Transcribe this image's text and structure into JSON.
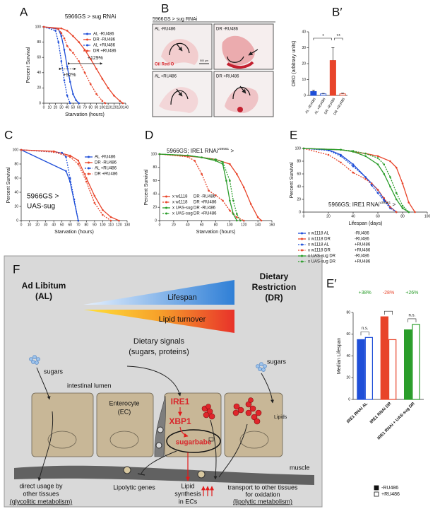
{
  "chart_data": [
    {
      "type": "line",
      "panel": "A",
      "title": "5966GS > sug RNAi",
      "xlabel": "Starvation (hours)",
      "ylabel": "Percent Survival",
      "xlim": [
        0,
        140
      ],
      "ylim": [
        0,
        100
      ],
      "xticks": [
        0,
        10,
        20,
        30,
        40,
        50,
        60,
        70,
        80,
        90,
        100,
        110,
        120,
        130,
        140
      ],
      "yticks": [
        0,
        20,
        40,
        60,
        80,
        100
      ],
      "legend": "upper right",
      "annotations": [
        "+129%",
        "+92%"
      ],
      "series": [
        {
          "name": "AL -RU486",
          "color": "#1f4fd8",
          "dash": false,
          "x": [
            0,
            25,
            30,
            35,
            40,
            45,
            50,
            55,
            60
          ],
          "values": [
            100,
            97,
            88,
            70,
            48,
            28,
            12,
            4,
            0
          ]
        },
        {
          "name": "DR -RU486",
          "color": "#e8442a",
          "dash": false,
          "x": [
            0,
            30,
            40,
            50,
            60,
            70,
            80,
            90,
            100,
            110,
            120,
            130,
            135
          ],
          "values": [
            100,
            98,
            95,
            88,
            80,
            70,
            58,
            45,
            32,
            20,
            10,
            3,
            0
          ]
        },
        {
          "name": "AL +RU486",
          "color": "#1f4fd8",
          "dash": true,
          "x": [
            0,
            20,
            25,
            30,
            35,
            40,
            45
          ],
          "values": [
            100,
            95,
            80,
            55,
            30,
            10,
            0
          ]
        },
        {
          "name": "DR +RU486",
          "color": "#e8442a",
          "dash": true,
          "x": [
            0,
            25,
            30,
            35,
            40,
            45,
            50,
            60,
            70,
            80,
            90,
            100,
            105
          ],
          "values": [
            100,
            97,
            92,
            85,
            75,
            70,
            66,
            55,
            40,
            25,
            12,
            3,
            0
          ]
        }
      ]
    },
    {
      "type": "bar",
      "panel": "B′",
      "ylabel": "ORO (arbitrary units)",
      "ylim": [
        0,
        40
      ],
      "yticks": [
        0,
        10,
        20,
        30,
        40
      ],
      "categories": [
        "AL -RU486",
        "AL +RU486",
        "DR -RU486",
        "DR +RU486"
      ],
      "values": [
        2.5,
        1,
        22,
        1
      ],
      "errors": [
        0.8,
        0.3,
        8,
        0.4
      ],
      "colors": [
        "#1f4fd8",
        "#1f4fd8",
        "#e8442a",
        "#e8442a"
      ],
      "filled": [
        true,
        false,
        true,
        false
      ],
      "annotations": [
        "*",
        "**"
      ]
    },
    {
      "type": "line",
      "panel": "C",
      "xlabel": "Starvation (hours)",
      "ylabel": "Percent Survival",
      "annotation": [
        "5966GS >",
        "UAS-sug"
      ],
      "xlim": [
        0,
        130
      ],
      "ylim": [
        0,
        100
      ],
      "xticks": [
        0,
        10,
        20,
        30,
        40,
        50,
        60,
        70,
        80,
        90,
        100,
        110,
        120,
        130
      ],
      "yticks": [
        0,
        20,
        40,
        60,
        80,
        100
      ],
      "legend": "upper right",
      "series": [
        {
          "name": "AL -RU486",
          "color": "#1f4fd8",
          "dash": false,
          "x": [
            0,
            55,
            60,
            70
          ],
          "values": [
            100,
            70,
            55,
            0
          ]
        },
        {
          "name": "DR -RU486",
          "color": "#e8442a",
          "dash": false,
          "x": [
            0,
            40,
            60,
            70,
            80,
            90,
            100,
            110,
            120
          ],
          "values": [
            100,
            98,
            92,
            85,
            60,
            35,
            15,
            5,
            0
          ]
        },
        {
          "name": "AL +RU486",
          "color": "#1f4fd8",
          "dash": true,
          "x": [
            0,
            50,
            55,
            60,
            65,
            70
          ],
          "values": [
            100,
            96,
            90,
            60,
            30,
            0
          ]
        },
        {
          "name": "DR +RU486",
          "color": "#e8442a",
          "dash": true,
          "x": [
            0,
            40,
            60,
            70,
            80,
            90,
            100,
            110
          ],
          "values": [
            100,
            97,
            90,
            80,
            55,
            25,
            8,
            0
          ]
        }
      ]
    },
    {
      "type": "line",
      "panel": "D",
      "xlabel": "Starvation (hours)",
      "ylabel": "Percent Survival",
      "annotation": [
        "5966GS; IRE1 RNAi",
        "v39561",
        " >"
      ],
      "xlim": [
        0,
        160
      ],
      "ylim": [
        0,
        100
      ],
      "xticks": [
        0,
        20,
        40,
        60,
        80,
        100,
        120,
        140,
        160
      ],
      "yticks": [
        0,
        20,
        40,
        60,
        80,
        100
      ],
      "legend": "lower left",
      "series": [
        {
          "name": "x w1118",
          "treatment": "DR -RU486",
          "color": "#e8442a",
          "dash": false,
          "x": [
            0,
            40,
            60,
            80,
            100,
            110,
            120,
            130,
            140,
            145
          ],
          "values": [
            100,
            97,
            95,
            92,
            85,
            70,
            50,
            25,
            5,
            0
          ]
        },
        {
          "name": "x w1118",
          "treatment": "DR +RU486",
          "color": "#e8442a",
          "dash": true,
          "x": [
            0,
            40,
            50,
            60,
            70,
            80,
            90,
            100,
            110,
            120
          ],
          "values": [
            100,
            96,
            90,
            70,
            45,
            38,
            30,
            15,
            5,
            0
          ]
        },
        {
          "name": "x UAS-sug",
          "treatment": "DR -RU486",
          "color": "#2a9d2a",
          "dash": false,
          "x": [
            0,
            40,
            60,
            80,
            90,
            95,
            100,
            105,
            110
          ],
          "values": [
            100,
            98,
            95,
            90,
            85,
            60,
            30,
            10,
            0
          ]
        },
        {
          "name": "x UAS-sug",
          "treatment": "DR +RU486",
          "color": "#2a9d2a",
          "dash": true,
          "x": [
            0,
            40,
            60,
            80,
            90,
            100,
            105,
            110,
            115
          ],
          "values": [
            100,
            98,
            95,
            92,
            88,
            60,
            30,
            10,
            0
          ]
        }
      ]
    },
    {
      "type": "line",
      "panel": "E",
      "xlabel": "Lifespan (days)",
      "ylabel": "Percent Survival",
      "annotation": [
        "5966GS; IRE1 RNAi",
        "v39561",
        " >"
      ],
      "xlim": [
        0,
        100
      ],
      "ylim": [
        0,
        100
      ],
      "xticks": [
        0,
        20,
        40,
        60,
        80,
        100
      ],
      "yticks": [
        0,
        20,
        40,
        60,
        80,
        100
      ],
      "legend": "below",
      "series": [
        {
          "name": "x w1118 AL",
          "treatment": "-RU486",
          "color": "#1f4fd8",
          "dash": false,
          "x": [
            0,
            20,
            30,
            40,
            50,
            55,
            60,
            65,
            70,
            75
          ],
          "values": [
            100,
            98,
            90,
            75,
            55,
            45,
            35,
            20,
            8,
            0
          ]
        },
        {
          "name": "x w1118 DR",
          "treatment": "-RU486",
          "color": "#e8442a",
          "dash": false,
          "x": [
            0,
            30,
            40,
            50,
            60,
            70,
            75,
            80,
            85,
            90
          ],
          "values": [
            100,
            98,
            95,
            92,
            88,
            80,
            70,
            45,
            15,
            0
          ]
        },
        {
          "name": "x w1118 AL",
          "treatment": "+RU486",
          "color": "#1f4fd8",
          "dash": true,
          "x": [
            0,
            20,
            30,
            40,
            50,
            55,
            60,
            65,
            70,
            75
          ],
          "values": [
            100,
            97,
            88,
            72,
            55,
            42,
            30,
            18,
            6,
            0
          ]
        },
        {
          "name": "x w1118 DR",
          "treatment": "+RU486",
          "color": "#e8442a",
          "dash": true,
          "x": [
            0,
            20,
            30,
            40,
            50,
            55,
            60,
            65,
            70,
            75
          ],
          "values": [
            100,
            90,
            78,
            62,
            52,
            45,
            35,
            22,
            8,
            0
          ]
        },
        {
          "name": "x UAS-sug DR",
          "treatment": "-RU486",
          "color": "#2a9d2a",
          "dash": false,
          "x": [
            0,
            30,
            40,
            50,
            60,
            65,
            70,
            75,
            80,
            85
          ],
          "values": [
            100,
            98,
            95,
            88,
            75,
            60,
            40,
            20,
            6,
            0
          ]
        },
        {
          "name": "x UAS-sug DR",
          "treatment": "+RU486",
          "color": "#2a9d2a",
          "dash": true,
          "x": [
            0,
            30,
            40,
            50,
            60,
            65,
            70,
            75,
            80,
            85
          ],
          "values": [
            100,
            98,
            96,
            92,
            85,
            75,
            55,
            30,
            10,
            0
          ]
        }
      ]
    },
    {
      "type": "grouped_bar",
      "panel": "E′",
      "ylabel": "Median Lifespan",
      "ylim": [
        0,
        80
      ],
      "yticks": [
        0,
        20,
        40,
        60,
        80
      ],
      "categories": [
        "IRE1 RNAi AL",
        "IRE1 RNAi DR",
        "IRE1 RNAi + UAS-sug DR"
      ],
      "colors": [
        "#1f4fd8",
        "#e8442a",
        "#2a9d2a"
      ],
      "series": [
        {
          "name": "-RU486",
          "filled": true,
          "values": [
            55,
            76,
            64
          ]
        },
        {
          "name": "+RU486",
          "filled": false,
          "values": [
            57,
            55,
            69
          ]
        }
      ],
      "changes": [
        {
          "text": "+38%",
          "color": "#2a9d2a"
        },
        {
          "text": "-28%",
          "color": "#e8442a"
        },
        {
          "text": "+26%",
          "color": "#2a9d2a"
        }
      ],
      "ns": [
        "n.s.",
        "n.s."
      ]
    }
  ],
  "images": {
    "panel": "B",
    "title": "5966GS > sug RNAi",
    "labels": [
      "AL -RU486",
      "DR -RU486",
      "AL +RU486",
      "DR +RU486"
    ],
    "stain": "Oil Red O",
    "scale": "500 μm"
  },
  "diagram": {
    "panel": "F",
    "left_title": [
      "Ad Libitum",
      "(AL)"
    ],
    "right_title": [
      "Dietary",
      "Restriction",
      "(DR)"
    ],
    "lifespan": "Lifespan",
    "lipid_turnover": "Lipid turnover",
    "dietary_signals": [
      "Dietary signals",
      "(sugars, proteins)"
    ],
    "sugars_left": "sugars",
    "sugars_right": "sugars",
    "intestinal_lumen": "intestinal lumen",
    "enterocyte": [
      "Enterocyte",
      "(EC)"
    ],
    "ire1": "IRE1",
    "xbp1": "XBP1",
    "sugarbabe": "sugarbabe",
    "lipids": "Lipids",
    "muscle": "muscle",
    "direct_usage": [
      "direct usage by",
      "other tissues",
      "(glycolitic metabolism)"
    ],
    "lipolytic_genes": "Lipolytic genes",
    "lipid_synthesis": [
      "Lipid",
      "synthesis",
      "in ECs"
    ],
    "transport": [
      "transport to other tissues",
      "for oxidation",
      "(lipolytic metabolism)"
    ]
  }
}
